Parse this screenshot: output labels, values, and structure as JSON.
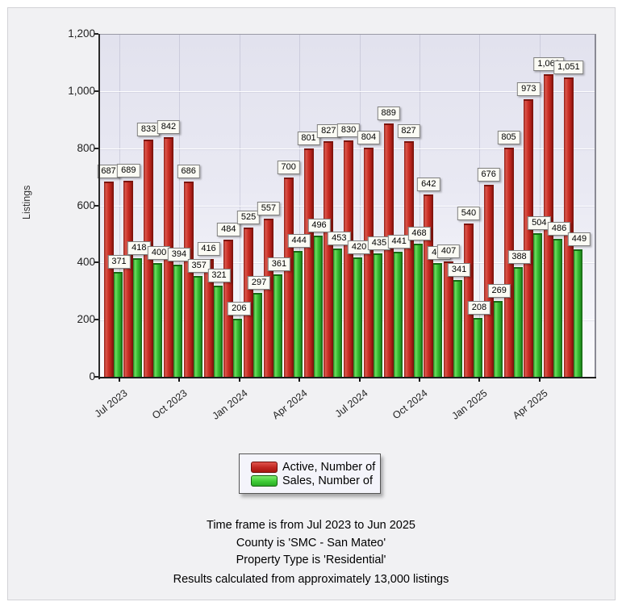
{
  "chart_data": {
    "type": "bar",
    "title": "",
    "xlabel": "",
    "ylabel": "Listings",
    "ylim": [
      0,
      1200
    ],
    "ytick_step": 200,
    "grid": true,
    "bar_value_labels": true,
    "legend_position": "bottom-center",
    "categories": [
      "Jul 2023",
      "Aug 2023",
      "Sep 2023",
      "Oct 2023",
      "Nov 2023",
      "Dec 2023",
      "Jan 2024",
      "Feb 2024",
      "Mar 2024",
      "Apr 2024",
      "May 2024",
      "Jun 2024",
      "Jul 2024",
      "Aug 2024",
      "Sep 2024",
      "Oct 2024",
      "Nov 2024",
      "Dec 2024",
      "Jan 2025",
      "Feb 2025",
      "Mar 2025",
      "Apr 2025",
      "May 2025",
      "Jun 2025"
    ],
    "x_tick_labels": [
      "Jul 2023",
      "Oct 2023",
      "Jan 2024",
      "Apr 2024",
      "Jul 2024",
      "Oct 2024",
      "Jan 2025",
      "Apr 2025"
    ],
    "x_tick_indices": [
      0,
      3,
      6,
      9,
      12,
      15,
      18,
      21
    ],
    "series": [
      {
        "name": "Active, Number of",
        "color": "#c1261e",
        "values": [
          687,
          689,
          833,
          842,
          686,
          416,
          484,
          525,
          557,
          700,
          801,
          827,
          830,
          804,
          889,
          827,
          642,
          407,
          540,
          676,
          805,
          973,
          1062,
          1051
        ]
      },
      {
        "name": "Sales, Number of",
        "color": "#2cb82a",
        "values": [
          371,
          418,
          400,
          394,
          357,
          321,
          206,
          297,
          361,
          444,
          496,
          453,
          420,
          435,
          441,
          468,
          402,
          341,
          208,
          269,
          388,
          504,
          486,
          449
        ]
      }
    ]
  },
  "footer": {
    "lines": [
      "Time frame is from Jul 2023 to Jun 2025",
      "County is 'SMC - San Mateo'",
      "Property Type is 'Residential'",
      "Results calculated from approximately 13,000 listings"
    ]
  }
}
